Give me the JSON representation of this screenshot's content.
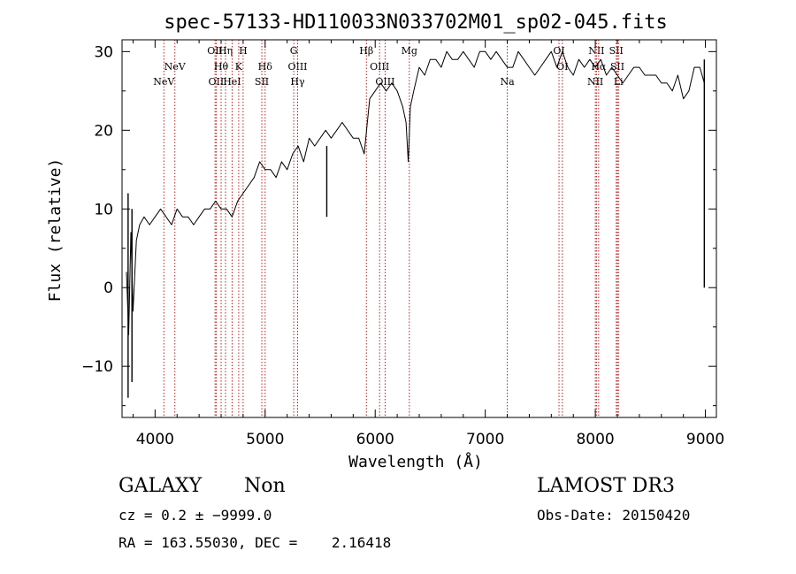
{
  "chart_data": {
    "type": "line",
    "title": "spec-57133-HD110033N033702M01_sp02-045.fits",
    "xlabel": "Wavelength (Å)",
    "ylabel": "Flux (relative)",
    "xlim": [
      3700,
      9100
    ],
    "ylim": [
      -16.5,
      31.5
    ],
    "xticks": [
      4000,
      5000,
      6000,
      7000,
      8000,
      9000
    ],
    "yticks": [
      -10,
      0,
      10,
      20,
      30
    ],
    "xtick_labels": [
      "4000",
      "5000",
      "6000",
      "7000",
      "8000",
      "9000"
    ],
    "ytick_labels": [
      "−10",
      "0",
      "10",
      "20",
      "30"
    ],
    "grid": false,
    "legend": "none",
    "colors": {
      "spectrum": "#000000",
      "lines": "#b22222"
    },
    "spectrum": {
      "x": [
        3740,
        3760,
        3780,
        3800,
        3830,
        3860,
        3900,
        3950,
        4000,
        4050,
        4100,
        4150,
        4200,
        4250,
        4300,
        4350,
        4400,
        4450,
        4500,
        4550,
        4600,
        4650,
        4700,
        4750,
        4800,
        4850,
        4900,
        4950,
        5000,
        5050,
        5100,
        5150,
        5200,
        5250,
        5300,
        5350,
        5400,
        5450,
        5500,
        5550,
        5600,
        5650,
        5700,
        5750,
        5800,
        5850,
        5900,
        5950,
        6000,
        6050,
        6100,
        6150,
        6200,
        6250,
        6280,
        6300,
        6320,
        6350,
        6400,
        6450,
        6500,
        6550,
        6600,
        6650,
        6700,
        6750,
        6800,
        6850,
        6900,
        6950,
        7000,
        7050,
        7100,
        7150,
        7200,
        7250,
        7300,
        7350,
        7400,
        7450,
        7500,
        7550,
        7600,
        7650,
        7700,
        7750,
        7800,
        7850,
        7900,
        7950,
        8000,
        8050,
        8100,
        8150,
        8200,
        8250,
        8300,
        8350,
        8400,
        8450,
        8500,
        8550,
        8600,
        8650,
        8700,
        8750,
        8800,
        8850,
        8900,
        8950,
        8990
      ],
      "y": [
        2,
        -6,
        7,
        -3,
        6,
        8,
        9,
        8,
        9,
        10,
        9,
        8,
        10,
        9,
        9,
        8,
        9,
        10,
        10,
        11,
        10,
        10,
        9,
        11,
        12,
        13,
        14,
        16,
        15,
        15,
        14,
        16,
        15,
        17,
        18,
        16,
        19,
        18,
        19,
        20,
        19,
        20,
        21,
        20,
        19,
        19,
        17,
        24,
        25,
        26,
        25,
        26,
        25,
        23,
        21,
        16,
        23,
        25,
        28,
        27,
        29,
        29,
        28,
        30,
        29,
        29,
        30,
        29,
        28,
        30,
        30,
        29,
        30,
        29,
        28,
        28,
        30,
        29,
        28,
        27,
        28,
        29,
        30,
        28,
        30,
        28,
        27,
        29,
        28,
        29,
        28,
        29,
        27,
        28,
        27,
        26,
        27,
        28,
        28,
        27,
        27,
        27,
        26,
        26,
        25,
        27,
        24,
        25,
        28,
        28,
        26
      ]
    },
    "spike_features": [
      {
        "x": 3755,
        "ymin": -14,
        "ymax": 12
      },
      {
        "x": 3790,
        "ymin": -12,
        "ymax": 10
      },
      {
        "x": 5560,
        "ymin": 9,
        "ymax": 18
      },
      {
        "x": 8990,
        "ymin": 0,
        "ymax": 29
      }
    ],
    "line_markers": [
      {
        "label": "NeV",
        "x": 4080,
        "tier": 2
      },
      {
        "label": "NeV",
        "x": 4180,
        "tier": 1
      },
      {
        "label": "OII",
        "x": 4545,
        "tier": 0
      },
      {
        "label": "OII",
        "x": 4555,
        "tier": 2
      },
      {
        "label": "Hθ",
        "x": 4600,
        "tier": 1
      },
      {
        "label": "Hη",
        "x": 4640,
        "tier": 0
      },
      {
        "label": "HeI",
        "x": 4700,
        "tier": 2
      },
      {
        "label": "K",
        "x": 4760,
        "tier": 1
      },
      {
        "label": "H",
        "x": 4800,
        "tier": 0
      },
      {
        "label": "Hδ",
        "x": 5000,
        "tier": 1
      },
      {
        "label": "SII",
        "x": 4970,
        "tier": 2
      },
      {
        "label": "G",
        "x": 5260,
        "tier": 0
      },
      {
        "label": "OIII",
        "x": 5295,
        "tier": 1
      },
      {
        "label": "Hγ",
        "x": 5295,
        "tier": 2
      },
      {
        "label": "Hβ",
        "x": 5920,
        "tier": 0
      },
      {
        "label": "OIII",
        "x": 6040,
        "tier": 1
      },
      {
        "label": "OIII",
        "x": 6090,
        "tier": 2
      },
      {
        "label": "Mg",
        "x": 6310,
        "tier": 0
      },
      {
        "label": "Na",
        "x": 7200,
        "tier": 2
      },
      {
        "label": "OI",
        "x": 7670,
        "tier": 0
      },
      {
        "label": "OI",
        "x": 7700,
        "tier": 1
      },
      {
        "label": "NII",
        "x": 8010,
        "tier": 0
      },
      {
        "label": "Hα",
        "x": 8030,
        "tier": 1
      },
      {
        "label": "NII",
        "x": 8000,
        "tier": 2
      },
      {
        "label": "SII",
        "x": 8190,
        "tier": 0
      },
      {
        "label": "SII",
        "x": 8200,
        "tier": 1
      },
      {
        "label": "Li",
        "x": 8210,
        "tier": 2
      }
    ]
  },
  "info": {
    "class_text": "GALAXY",
    "subclass_text": "Non",
    "redshift_text": "cz = 0.2 ± −9999.0",
    "coords_text": "RA = 163.55030, DEC =    2.16418",
    "survey_text": "LAMOST DR3",
    "obsdate_text": "Obs-Date: 20150420"
  }
}
